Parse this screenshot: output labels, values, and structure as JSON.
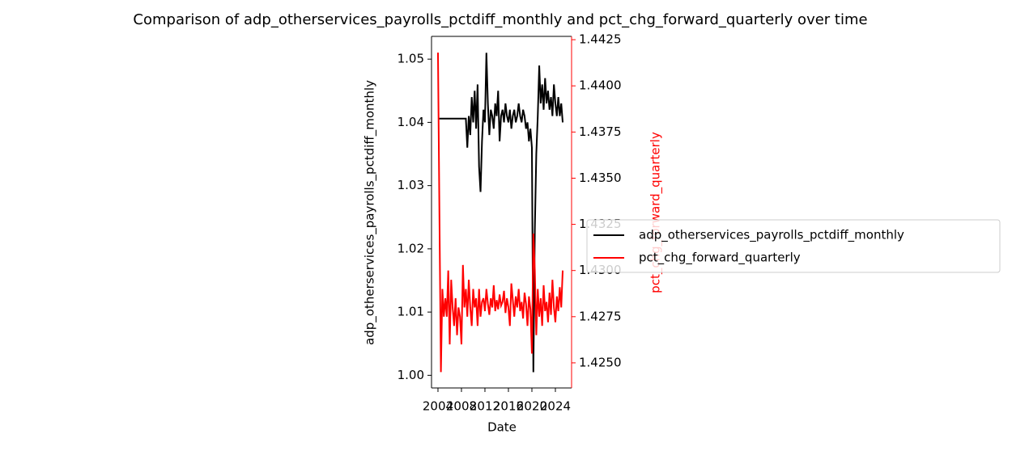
{
  "chart_data": {
    "type": "line",
    "title": "Comparison of adp_otherservices_payrolls_pctdiff_monthly and pct_chg_forward_quarterly over time",
    "xlabel": "Date",
    "ylabel": "adp_otherservices_payrolls_pctdiff_monthly",
    "y2label": "pct_chg_forward_quarterly",
    "x": [
      2004,
      2004.25,
      2004.5,
      2004.75,
      2005,
      2005.25,
      2005.5,
      2005.75,
      2006,
      2006.25,
      2006.5,
      2006.75,
      2007,
      2007.25,
      2007.5,
      2007.75,
      2008,
      2008.25,
      2008.5,
      2008.75,
      2009,
      2009.25,
      2009.5,
      2009.75,
      2010,
      2010.25,
      2010.5,
      2010.75,
      2011,
      2011.25,
      2011.5,
      2011.75,
      2012,
      2012.25,
      2012.5,
      2012.75,
      2013,
      2013.25,
      2013.5,
      2013.75,
      2014,
      2014.25,
      2014.5,
      2014.75,
      2015,
      2015.25,
      2015.5,
      2015.75,
      2016,
      2016.25,
      2016.5,
      2016.75,
      2017,
      2017.25,
      2017.5,
      2017.75,
      2018,
      2018.25,
      2018.5,
      2018.75,
      2019,
      2019.25,
      2019.5,
      2019.75,
      2020,
      2020.25,
      2020.5,
      2020.75,
      2021,
      2021.25,
      2021.5,
      2021.75,
      2022,
      2022.25,
      2022.5,
      2022.75,
      2023,
      2023.25,
      2023.5,
      2023.75,
      2024,
      2024.25,
      2024.5,
      2024.75,
      2025,
      2025.25
    ],
    "series": [
      {
        "name": "adp_otherservices_payrolls_pctdiff_monthly",
        "color": "#000000",
        "axis": "y",
        "values": [
          1.0406,
          1.0406,
          1.0406,
          1.0406,
          1.0406,
          1.0406,
          1.0406,
          1.0406,
          1.0406,
          1.0406,
          1.0406,
          1.0406,
          1.0406,
          1.0406,
          1.0406,
          1.0406,
          1.0406,
          1.0406,
          1.0406,
          1.0406,
          1.036,
          1.041,
          1.038,
          1.044,
          1.04,
          1.045,
          1.039,
          1.046,
          1.033,
          1.029,
          1.037,
          1.042,
          1.04,
          1.051,
          1.043,
          1.038,
          1.042,
          1.041,
          1.039,
          1.043,
          1.041,
          1.045,
          1.037,
          1.041,
          1.042,
          1.04,
          1.043,
          1.041,
          1.04,
          1.042,
          1.039,
          1.041,
          1.042,
          1.04,
          1.041,
          1.043,
          1.041,
          1.04,
          1.042,
          1.041,
          1.039,
          1.04,
          1.037,
          1.039,
          1.036,
          1.0005,
          1.023,
          1.035,
          1.041,
          1.049,
          1.043,
          1.046,
          1.042,
          1.047,
          1.043,
          1.045,
          1.042,
          1.044,
          1.041,
          1.046,
          1.043,
          1.041,
          1.044,
          1.041,
          1.043,
          1.04
        ]
      },
      {
        "name": "pct_chg_forward_quarterly",
        "color": "#ff0000",
        "axis": "y2",
        "values": [
          1.4418,
          1.433,
          1.4245,
          1.429,
          1.4275,
          1.4285,
          1.4275,
          1.43,
          1.426,
          1.4295,
          1.428,
          1.427,
          1.4285,
          1.4265,
          1.428,
          1.4275,
          1.426,
          1.4303,
          1.428,
          1.429,
          1.4275,
          1.4295,
          1.428,
          1.427,
          1.429,
          1.428,
          1.4285,
          1.427,
          1.429,
          1.4275,
          1.4283,
          1.4285,
          1.4278,
          1.429,
          1.4282,
          1.4276,
          1.4285,
          1.428,
          1.4292,
          1.4278,
          1.4284,
          1.4279,
          1.4287,
          1.4281,
          1.4283,
          1.4289,
          1.4277,
          1.4285,
          1.428,
          1.427,
          1.4293,
          1.4284,
          1.4275,
          1.4286,
          1.428,
          1.429,
          1.4278,
          1.4283,
          1.4274,
          1.4288,
          1.4282,
          1.427,
          1.4286,
          1.4279,
          1.4255,
          1.432,
          1.43,
          1.4265,
          1.429,
          1.4275,
          1.4285,
          1.427,
          1.4292,
          1.4278,
          1.4283,
          1.4272,
          1.4288,
          1.4276,
          1.4295,
          1.428,
          1.4272,
          1.4286,
          1.4278,
          1.4291,
          1.428,
          1.43
        ]
      }
    ],
    "xlim": [
      2002.9,
      2026.76
    ],
    "xticks": [
      2004,
      2008,
      2012,
      2016,
      2020,
      2024
    ],
    "ylim": [
      0.998,
      1.0536
    ],
    "yticks": [
      {
        "value": 1,
        "label": "1.00"
      },
      1.01,
      1.02,
      1.03,
      1.04,
      1.05
    ],
    "y2lim": [
      1.42364,
      1.44268
    ],
    "y2ticks": [
      {
        "value": 1.425,
        "label": "1.4250"
      },
      1.4275,
      {
        "value": 1.43,
        "label": "1.4300"
      },
      1.4325,
      {
        "value": 1.435,
        "label": "1.4350"
      },
      1.4375,
      {
        "value": 1.44,
        "label": "1.4400"
      },
      1.4425
    ],
    "legend": "right"
  }
}
